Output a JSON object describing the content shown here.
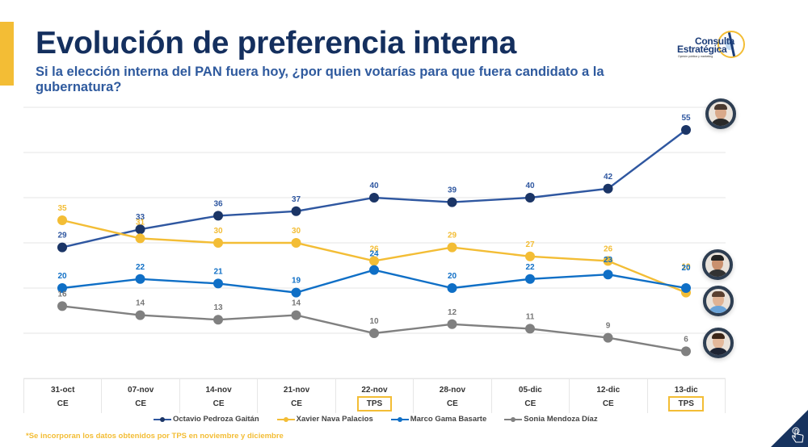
{
  "header": {
    "title": "Evolución de preferencia interna",
    "subtitle": "Si la elección interna del PAN fuera hoy, ¿por quien votarías para que fuera candidato a la gubernatura?",
    "logo_line1": "Consulta",
    "logo_line2": "Estratégica",
    "logo_tagline": "Opinión pública y marketing"
  },
  "colors": {
    "accent": "#F3BD35",
    "title": "#142F5E",
    "subtitle": "#2F5A9E"
  },
  "footnote": "*Se incorporan los datos obtenidos por TPS en noviembre y diciembre",
  "chart_data": {
    "type": "line",
    "title": "Evolución de preferencia interna",
    "subtitle": "Si la elección interna del PAN fuera hoy, ¿por quien votarías para que fuera candidato a la gubernatura?",
    "categories": [
      "31-oct",
      "07-nov",
      "14-nov",
      "21-nov",
      "22-nov",
      "28-nov",
      "05-dic",
      "12-dic",
      "13-dic"
    ],
    "sources": [
      "CE",
      "CE",
      "CE",
      "CE",
      "TPS",
      "CE",
      "CE",
      "CE",
      "TPS"
    ],
    "highlighted_sources": [
      "TPS"
    ],
    "ylim": [
      0,
      60
    ],
    "grid": true,
    "grid_step": 10,
    "xlabel": "",
    "ylabel": "",
    "legend_position": "bottom",
    "series": [
      {
        "name": "Octavio Pedroza Gaitán",
        "color": "#1B3566",
        "line_color": "#2F57A0",
        "label_color": "#2F57A0",
        "values": [
          29,
          33,
          36,
          37,
          40,
          39,
          40,
          42,
          55
        ]
      },
      {
        "name": "Xavier Nava Palacios",
        "color": "#F3BD35",
        "line_color": "#F3BD35",
        "label_color": "#F3BD35",
        "values": [
          35,
          31,
          30,
          30,
          26,
          29,
          27,
          26,
          19
        ]
      },
      {
        "name": "Marco Gama Basarte",
        "color": "#0F6FC6",
        "line_color": "#0F6FC6",
        "label_color": "#0F6FC6",
        "values": [
          20,
          22,
          21,
          19,
          24,
          20,
          22,
          23,
          20
        ]
      },
      {
        "name": "Sonia Mendoza Díaz",
        "color": "#808080",
        "line_color": "#808080",
        "label_color": "#777777",
        "values": [
          16,
          14,
          13,
          14,
          10,
          12,
          11,
          9,
          6
        ]
      }
    ]
  }
}
